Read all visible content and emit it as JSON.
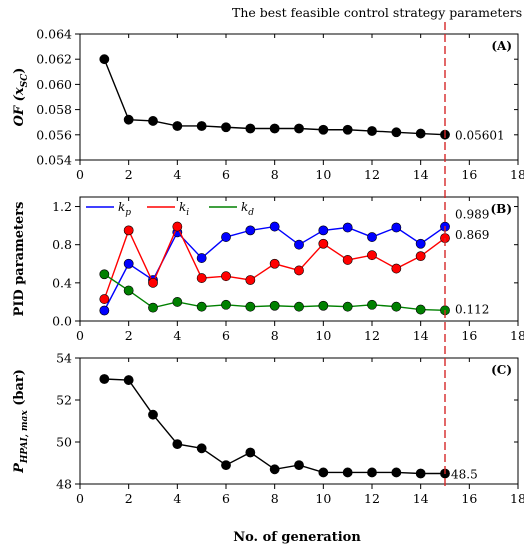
{
  "figure": {
    "top_annotation": "The best feasible control strategy parameters",
    "xlabel": "No. of generation",
    "best_generation": 15,
    "marker_color": "#d62728"
  },
  "chart_data": [
    {
      "type": "line",
      "panel_label": "(A)",
      "ylabel": {
        "main": "OF (x",
        "sub": "SC",
        "close": ")"
      },
      "xlim": [
        0,
        18
      ],
      "ylim": [
        0.054,
        0.064
      ],
      "xticks": [
        0,
        2,
        4,
        6,
        8,
        10,
        12,
        14,
        16,
        18
      ],
      "yticks": [
        "0.054",
        "0.056",
        "0.058",
        "0.060",
        "0.062",
        "0.064"
      ],
      "series": [
        {
          "color": "#000000",
          "x": [
            1,
            2,
            3,
            4,
            5,
            6,
            7,
            8,
            9,
            10,
            11,
            12,
            13,
            14,
            15
          ],
          "values": [
            0.062,
            0.0572,
            0.0571,
            0.0567,
            0.0567,
            0.0566,
            0.0565,
            0.0565,
            0.0565,
            0.0564,
            0.0564,
            0.0563,
            0.0562,
            0.0561,
            0.05601
          ]
        }
      ],
      "annotations": [
        {
          "text": "0.05601",
          "series": 0
        }
      ]
    },
    {
      "type": "line",
      "panel_label": "(B)",
      "ylabel": {
        "main": "PID parameters"
      },
      "xlim": [
        0,
        18
      ],
      "ylim": [
        0.0,
        1.3
      ],
      "xticks": [
        0,
        2,
        4,
        6,
        8,
        10,
        12,
        14,
        16,
        18
      ],
      "yticks": [
        "0.0",
        "0.4",
        "0.8",
        "1.2"
      ],
      "legend": "top-left",
      "series": [
        {
          "name": "k",
          "name_sub": "p",
          "color": "#0000ff",
          "x": [
            1,
            2,
            3,
            4,
            5,
            6,
            7,
            8,
            9,
            10,
            11,
            12,
            13,
            14,
            15
          ],
          "values": [
            0.11,
            0.6,
            0.43,
            0.93,
            0.66,
            0.88,
            0.95,
            0.99,
            0.8,
            0.95,
            0.98,
            0.88,
            0.98,
            0.81,
            0.989
          ]
        },
        {
          "name": "k",
          "name_sub": "i",
          "color": "#ff0000",
          "x": [
            1,
            2,
            3,
            4,
            5,
            6,
            7,
            8,
            9,
            10,
            11,
            12,
            13,
            14,
            15
          ],
          "values": [
            0.23,
            0.95,
            0.4,
            0.99,
            0.45,
            0.47,
            0.43,
            0.6,
            0.53,
            0.81,
            0.64,
            0.69,
            0.55,
            0.68,
            0.869
          ]
        },
        {
          "name": "k",
          "name_sub": "d",
          "color": "#008000",
          "x": [
            1,
            2,
            3,
            4,
            5,
            6,
            7,
            8,
            9,
            10,
            11,
            12,
            13,
            14,
            15
          ],
          "values": [
            0.49,
            0.32,
            0.14,
            0.2,
            0.15,
            0.17,
            0.15,
            0.16,
            0.15,
            0.16,
            0.15,
            0.17,
            0.15,
            0.12,
            0.112
          ]
        }
      ],
      "annotations": [
        {
          "text": "0.989",
          "series": 0
        },
        {
          "text": "0.869",
          "series": 1
        },
        {
          "text": "0.112",
          "series": 2
        }
      ]
    },
    {
      "type": "line",
      "panel_label": "(C)",
      "ylabel": {
        "main": "P",
        "sub": "HPAI, max",
        "close": " (bar)"
      },
      "xlim": [
        0,
        18
      ],
      "ylim": [
        48,
        54
      ],
      "xticks": [
        0,
        2,
        4,
        6,
        8,
        10,
        12,
        14,
        16,
        18
      ],
      "yticks": [
        "48",
        "50",
        "52",
        "54"
      ],
      "series": [
        {
          "color": "#000000",
          "x": [
            1,
            2,
            3,
            4,
            5,
            6,
            7,
            8,
            9,
            10,
            11,
            12,
            13,
            14,
            15
          ],
          "values": [
            53.0,
            52.95,
            51.3,
            49.9,
            49.7,
            48.9,
            49.5,
            48.7,
            48.9,
            48.55,
            48.55,
            48.55,
            48.55,
            48.5,
            48.5
          ]
        }
      ],
      "annotations": [
        {
          "text": "48.5",
          "series": 0
        }
      ]
    }
  ]
}
